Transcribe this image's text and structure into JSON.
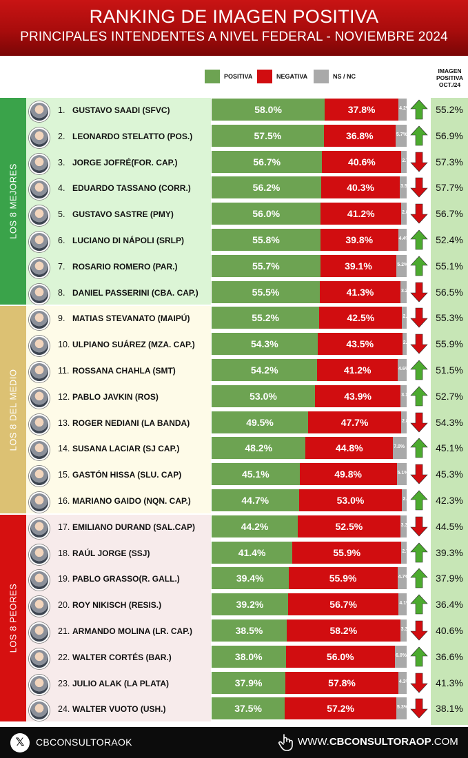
{
  "header": {
    "title": "RANKING DE IMAGEN POSITIVA",
    "subtitle": "PRINCIPALES INTENDENTES A NIVEL FEDERAL - NOVIEMBRE 2024"
  },
  "legend": {
    "positiva": "POSITIVA",
    "negativa": "NEGATIVA",
    "nsnc": "NS / NC"
  },
  "prev_header": [
    "IMAGEN",
    "POSITIVA",
    "OCT./24"
  ],
  "groups": [
    {
      "label": "LOS 8 MEJORES",
      "color": "#3aa34a",
      "bg": "#dcf5d6"
    },
    {
      "label": "LOS 8 DEL MEDIO",
      "color": "#dcc173",
      "bg": "#fefbe8"
    },
    {
      "label": "LOS 8 PEORES",
      "color": "#d61010",
      "bg": "#f7ebeb"
    }
  ],
  "colors": {
    "positiva": "#6da352",
    "negativa": "#d10d10",
    "nsnc": "#a9a9a9",
    "up": "#4caa2f",
    "down": "#d10d10"
  },
  "chart_data": {
    "type": "bar",
    "stacked": true,
    "orientation": "horizontal",
    "title": "RANKING DE IMAGEN POSITIVA",
    "subtitle": "PRINCIPALES INTENDENTES A NIVEL FEDERAL - NOVIEMBRE 2024",
    "series_names": [
      "POSITIVA",
      "NEGATIVA",
      "NS / NC"
    ],
    "xlim": [
      0,
      100
    ],
    "rows": [
      {
        "rank": "1.",
        "name": "GUSTAVO SAADI (SFVC)",
        "pos": 58.0,
        "neg": 37.8,
        "ns": 4.2,
        "prev": 55.2,
        "trend": "up"
      },
      {
        "rank": "2.",
        "name": "LEONARDO STELATTO (POS.)",
        "pos": 57.5,
        "neg": 36.8,
        "ns": 5.7,
        "prev": 56.9,
        "trend": "up"
      },
      {
        "rank": "3.",
        "name": "JORGE JOFRÉ(FOR. CAP.)",
        "pos": 56.7,
        "neg": 40.6,
        "ns": 2.7,
        "prev": 57.3,
        "trend": "down"
      },
      {
        "rank": "4.",
        "name": "EDUARDO TASSANO (CORR.)",
        "pos": 56.2,
        "neg": 40.3,
        "ns": 3.5,
        "prev": 57.7,
        "trend": "down"
      },
      {
        "rank": "5.",
        "name": "GUSTAVO SASTRE (PMY)",
        "pos": 56.0,
        "neg": 41.2,
        "ns": 2.8,
        "prev": 56.7,
        "trend": "down"
      },
      {
        "rank": "6.",
        "name": "LUCIANO DI NÁPOLI (SRLP)",
        "pos": 55.8,
        "neg": 39.8,
        "ns": 4.4,
        "prev": 52.4,
        "trend": "up"
      },
      {
        "rank": "7.",
        "name": "ROSARIO ROMERO (PAR.)",
        "pos": 55.7,
        "neg": 39.1,
        "ns": 5.2,
        "prev": 55.1,
        "trend": "up"
      },
      {
        "rank": "8.",
        "name": "DANIEL PASSERINI (CBA. CAP.)",
        "pos": 55.5,
        "neg": 41.3,
        "ns": 3.2,
        "prev": 56.5,
        "trend": "down"
      },
      {
        "rank": "9.",
        "name": "MATIAS STEVANATO (MAIPÚ)",
        "pos": 55.2,
        "neg": 42.5,
        "ns": 2.3,
        "prev": 55.3,
        "trend": "down"
      },
      {
        "rank": "10.",
        "name": "ULPIANO SUÁREZ (MZA. CAP.)",
        "pos": 54.3,
        "neg": 43.5,
        "ns": 2.2,
        "prev": 55.9,
        "trend": "down"
      },
      {
        "rank": "11.",
        "name": "ROSSANA CHAHLA (SMT)",
        "pos": 54.2,
        "neg": 41.2,
        "ns": 4.6,
        "prev": 51.5,
        "trend": "up"
      },
      {
        "rank": "12.",
        "name": "PABLO JAVKIN (ROS)",
        "pos": 53.0,
        "neg": 43.9,
        "ns": 3.1,
        "prev": 52.7,
        "trend": "up"
      },
      {
        "rank": "13.",
        "name": "ROGER NEDIANI (LA BANDA)",
        "pos": 49.5,
        "neg": 47.7,
        "ns": 2.8,
        "prev": 54.3,
        "trend": "down"
      },
      {
        "rank": "14.",
        "name": "SUSANA LACIAR (SJ CAP.)",
        "pos": 48.2,
        "neg": 44.8,
        "ns": 7.0,
        "prev": 45.1,
        "trend": "up"
      },
      {
        "rank": "15.",
        "name": "GASTÓN HISSA (SLU. CAP)",
        "pos": 45.1,
        "neg": 49.8,
        "ns": 5.1,
        "prev": 45.3,
        "trend": "down"
      },
      {
        "rank": "16.",
        "name": "MARIANO GAIDO (NQN. CAP.)",
        "pos": 44.7,
        "neg": 53.0,
        "ns": 2.3,
        "prev": 42.3,
        "trend": "up"
      },
      {
        "rank": "17.",
        "name": "EMILIANO DURAND (SAL.CAP)",
        "pos": 44.2,
        "neg": 52.5,
        "ns": 3.3,
        "prev": 44.5,
        "trend": "down"
      },
      {
        "rank": "18.",
        "name": "RAÚL JORGE (SSJ)",
        "pos": 41.4,
        "neg": 55.9,
        "ns": 2.7,
        "prev": 39.3,
        "trend": "up"
      },
      {
        "rank": "19.",
        "name": "PABLO GRASSO(R. GALL.)",
        "pos": 39.4,
        "neg": 55.9,
        "ns": 4.7,
        "prev": 37.9,
        "trend": "up"
      },
      {
        "rank": "20.",
        "name": "ROY NIKISCH (RESIS.)",
        "pos": 39.2,
        "neg": 56.7,
        "ns": 4.1,
        "prev": 36.4,
        "trend": "up"
      },
      {
        "rank": "21.",
        "name": "ARMANDO MOLINA (LR. CAP.)",
        "pos": 38.5,
        "neg": 58.2,
        "ns": 3.3,
        "prev": 40.6,
        "trend": "down"
      },
      {
        "rank": "22.",
        "name": "WALTER CORTÉS (BAR.)",
        "pos": 38.0,
        "neg": 56.0,
        "ns": 6.0,
        "prev": 36.6,
        "trend": "up"
      },
      {
        "rank": "23.",
        "name": "JULIO ALAK (LA PLATA)",
        "pos": 37.9,
        "neg": 57.8,
        "ns": 4.3,
        "prev": 41.3,
        "trend": "down"
      },
      {
        "rank": "24.",
        "name": "WALTER VUOTO (USH.)",
        "pos": 37.5,
        "neg": 57.2,
        "ns": 5.3,
        "prev": 38.1,
        "trend": "down"
      }
    ]
  },
  "footer": {
    "left": "CBCONSULTORAOK",
    "right_prefix": "WWW.",
    "right_bold": "CBCONSULTORAOP",
    "right_suffix": ".COM",
    "x_icon": "x-logo-icon",
    "hand_icon": "pointer-hand-icon"
  }
}
